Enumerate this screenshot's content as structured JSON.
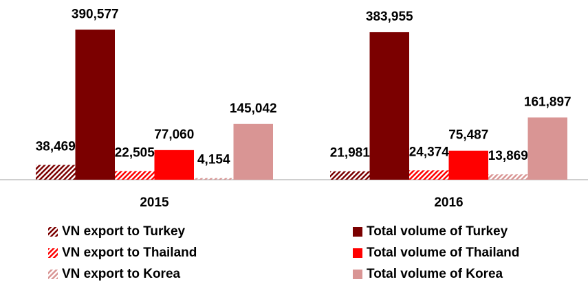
{
  "chart_data": {
    "type": "bar",
    "categories": [
      "2015",
      "2016"
    ],
    "ylim": [
      0,
      400000
    ],
    "series": [
      {
        "name": "VN export to Turkey",
        "color": "#7b0000",
        "hatch": true,
        "values": [
          38469,
          21981
        ],
        "value_labels": [
          "38,469",
          "21,981"
        ]
      },
      {
        "name": "Total volume of Turkey",
        "color": "#7b0000",
        "hatch": false,
        "values": [
          390577,
          383955
        ],
        "value_labels": [
          "390,577",
          "383,955"
        ]
      },
      {
        "name": "VN export to Thailand",
        "color": "#ff0000",
        "hatch": true,
        "values": [
          22505,
          24374
        ],
        "value_labels": [
          "22,505",
          "24,374"
        ]
      },
      {
        "name": "Total volume of Thailand",
        "color": "#ff0000",
        "hatch": false,
        "values": [
          77060,
          75487
        ],
        "value_labels": [
          "77,060",
          "75,487"
        ]
      },
      {
        "name": "VN export to Korea",
        "color": "#d99594",
        "hatch": true,
        "values": [
          4154,
          13869
        ],
        "value_labels": [
          "4,154",
          "13,869"
        ]
      },
      {
        "name": "Total volume of Korea",
        "color": "#d99594",
        "hatch": false,
        "values": [
          145042,
          161897
        ],
        "value_labels": [
          "145,042",
          "161,897"
        ]
      }
    ]
  }
}
